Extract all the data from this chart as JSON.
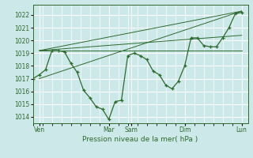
{
  "xlabel": "Pression niveau de la mer( hPa )",
  "bg_color": "#cce8e8",
  "grid_color": "#ffffff",
  "line_color": "#2d6a2d",
  "ylim": [
    1013.5,
    1022.8
  ],
  "yticks": [
    1014,
    1015,
    1016,
    1017,
    1018,
    1019,
    1020,
    1021,
    1022
  ],
  "xlim": [
    0,
    136
  ],
  "day_labels": [
    "Ven",
    "",
    "Mar",
    "Sam",
    "",
    "Dim",
    "",
    "Lun"
  ],
  "day_vline_positions": [
    4,
    48,
    62,
    96,
    132
  ],
  "day_tick_labels": [
    "Ven",
    "Mar",
    "Sam",
    "Dim",
    "Lun"
  ],
  "day_tick_positions": [
    4,
    48,
    62,
    96,
    132
  ],
  "main_x": [
    0,
    4,
    8,
    12,
    16,
    20,
    24,
    28,
    32,
    36,
    40,
    44,
    48,
    52,
    56,
    60,
    64,
    68,
    72,
    76,
    80,
    84,
    88,
    92,
    96,
    100,
    104,
    108,
    112,
    116,
    120,
    124,
    128,
    132
  ],
  "main_y": [
    1017.0,
    1017.3,
    1017.7,
    1019.2,
    1019.2,
    1019.1,
    1018.2,
    1017.5,
    1016.1,
    1015.5,
    1014.8,
    1014.6,
    1013.8,
    1015.2,
    1015.3,
    1018.8,
    1019.0,
    1018.8,
    1018.5,
    1017.6,
    1017.3,
    1016.5,
    1016.2,
    1016.8,
    1018.0,
    1020.2,
    1020.2,
    1019.6,
    1019.5,
    1019.5,
    1020.2,
    1021.0,
    1022.1,
    1022.2
  ],
  "trend1_x": [
    4,
    132
  ],
  "trend1_y": [
    1019.2,
    1019.2
  ],
  "trend2_x": [
    4,
    132
  ],
  "trend2_y": [
    1019.2,
    1022.3
  ],
  "trend3_x": [
    4,
    132
  ],
  "trend3_y": [
    1017.0,
    1022.3
  ],
  "trend4_x": [
    4,
    132
  ],
  "trend4_y": [
    1019.2,
    1020.4
  ]
}
